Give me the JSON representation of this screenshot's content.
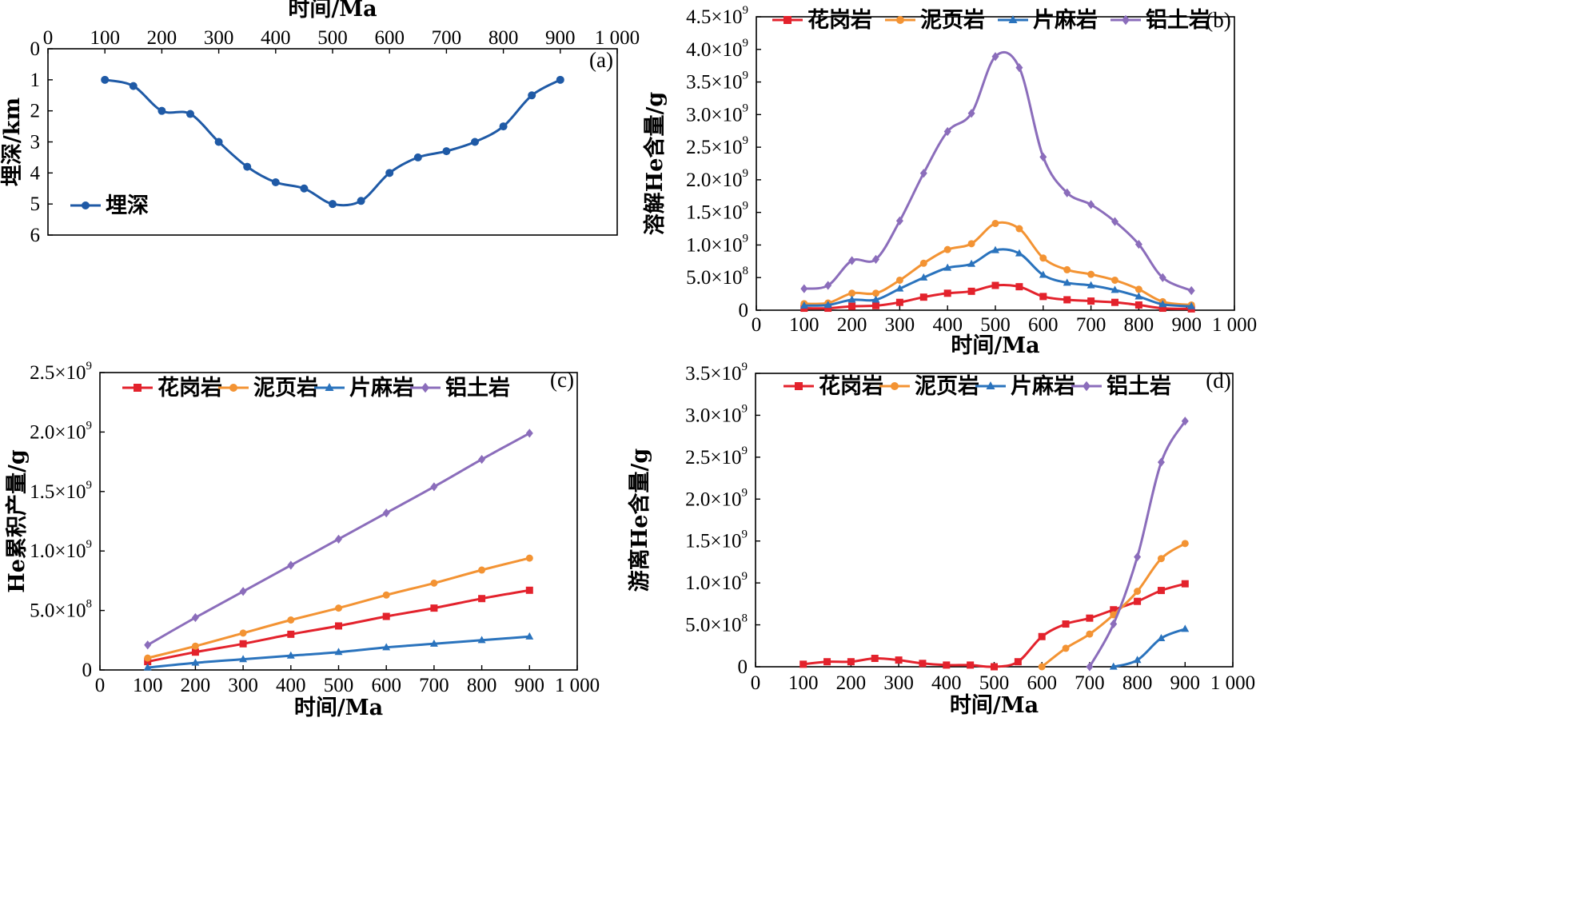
{
  "colors": {
    "granite": "#e3222c",
    "shale": "#f39333",
    "gneiss": "#2a73bd",
    "bauxite": "#8b6dbb",
    "depth": "#1f5aa6"
  },
  "chart_data": [
    {
      "id": "a",
      "type": "line",
      "panel_label": "(a)",
      "xlabel": "时间/Ma",
      "ylabel": "埋深/km",
      "x_axis_position": "top",
      "y_inverted": true,
      "xlim": [
        0,
        1000
      ],
      "ylim": [
        0,
        6
      ],
      "x_ticks": [
        "0",
        "100",
        "200",
        "300",
        "400",
        "500",
        "600",
        "700",
        "800",
        "900",
        "1 000"
      ],
      "y_ticks": [
        "0",
        "1",
        "2",
        "3",
        "4",
        "5",
        "6"
      ],
      "legend": {
        "placement": "bottom-left",
        "entries": [
          "埋深"
        ]
      },
      "series": [
        {
          "name": "埋深",
          "color": "#1f5aa6",
          "marker": "circle",
          "x": [
            100,
            150,
            200,
            250,
            300,
            350,
            400,
            450,
            500,
            550,
            600,
            650,
            700,
            750,
            800,
            850,
            900
          ],
          "y": [
            1.0,
            1.2,
            2.0,
            2.1,
            3.0,
            3.8,
            4.3,
            4.5,
            5.0,
            4.9,
            4.0,
            3.5,
            3.3,
            3.0,
            2.5,
            1.5,
            1.0
          ]
        }
      ]
    },
    {
      "id": "b",
      "type": "line",
      "panel_label": "(b)",
      "xlabel": "时间/Ma",
      "ylabel": "溶解He含量/g",
      "xlim": [
        0,
        1000
      ],
      "ylim": [
        0,
        4500000000
      ],
      "x_ticks": [
        "0",
        "100",
        "200",
        "300",
        "400",
        "500",
        "600",
        "700",
        "800",
        "900",
        "1 000"
      ],
      "y_ticks": [
        {
          "value": 0,
          "mant": "0",
          "exp": ""
        },
        {
          "value": 500000000,
          "mant": "5.0×10",
          "exp": "8"
        },
        {
          "value": 1000000000,
          "mant": "1.0×10",
          "exp": "9"
        },
        {
          "value": 1500000000,
          "mant": "1.5×10",
          "exp": "9"
        },
        {
          "value": 2000000000,
          "mant": "2.0×10",
          "exp": "9"
        },
        {
          "value": 2500000000,
          "mant": "2.5×10",
          "exp": "9"
        },
        {
          "value": 3000000000,
          "mant": "3.0×10",
          "exp": "9"
        },
        {
          "value": 3500000000,
          "mant": "3.5×10",
          "exp": "9"
        },
        {
          "value": 4000000000,
          "mant": "4.0×10",
          "exp": "9"
        },
        {
          "value": 4500000000,
          "mant": "4.5×10",
          "exp": "9"
        }
      ],
      "legend": {
        "placement": "top",
        "entries": [
          "花岗岩",
          "泥页岩",
          "片麻岩",
          "铝土岩"
        ]
      },
      "series": [
        {
          "name": "花岗岩",
          "color": "#e3222c",
          "marker": "square",
          "x": [
            100,
            150,
            200,
            250,
            300,
            350,
            400,
            450,
            500,
            550,
            600,
            650,
            700,
            750,
            800,
            850,
            910
          ],
          "y": [
            30000000,
            30000000,
            60000000,
            70000000,
            120000000,
            200000000,
            260000000,
            290000000,
            380000000,
            360000000,
            210000000,
            160000000,
            140000000,
            120000000,
            80000000,
            30000000,
            20000000
          ]
        },
        {
          "name": "泥页岩",
          "color": "#f39333",
          "marker": "circle",
          "x": [
            100,
            150,
            200,
            250,
            300,
            350,
            400,
            450,
            500,
            550,
            600,
            650,
            700,
            750,
            800,
            850,
            910
          ],
          "y": [
            100000000,
            110000000,
            260000000,
            260000000,
            460000000,
            720000000,
            930000000,
            1020000000,
            1330000000,
            1250000000,
            800000000,
            620000000,
            550000000,
            460000000,
            320000000,
            130000000,
            80000000
          ]
        },
        {
          "name": "片麻岩",
          "color": "#2a73bd",
          "marker": "triangle",
          "x": [
            100,
            150,
            200,
            250,
            300,
            350,
            400,
            450,
            500,
            550,
            600,
            650,
            700,
            750,
            800,
            850,
            910
          ],
          "y": [
            70000000,
            80000000,
            160000000,
            160000000,
            330000000,
            500000000,
            650000000,
            710000000,
            920000000,
            870000000,
            540000000,
            420000000,
            380000000,
            310000000,
            210000000,
            90000000,
            60000000
          ]
        },
        {
          "name": "铝土岩",
          "color": "#8b6dbb",
          "marker": "diamond",
          "x": [
            100,
            150,
            200,
            250,
            300,
            350,
            400,
            450,
            500,
            550,
            600,
            650,
            700,
            750,
            800,
            850,
            910
          ],
          "y": [
            330000000,
            380000000,
            760000000,
            780000000,
            1370000000,
            2100000000,
            2740000000,
            3020000000,
            3890000000,
            3720000000,
            2350000000,
            1800000000,
            1620000000,
            1360000000,
            1010000000,
            500000000,
            300000000
          ]
        }
      ]
    },
    {
      "id": "c",
      "type": "line",
      "panel_label": "(c)",
      "xlabel": "时间/Ma",
      "ylabel": "He累积产量/g",
      "xlim": [
        0,
        1000
      ],
      "ylim": [
        0,
        2500000000
      ],
      "x_ticks": [
        "0",
        "100",
        "200",
        "300",
        "400",
        "500",
        "600",
        "700",
        "800",
        "900",
        "1 000"
      ],
      "y_ticks": [
        {
          "value": 0,
          "mant": "0",
          "exp": ""
        },
        {
          "value": 500000000,
          "mant": "5.0×10",
          "exp": "8"
        },
        {
          "value": 1000000000,
          "mant": "1.0×10",
          "exp": "9"
        },
        {
          "value": 1500000000,
          "mant": "1.5×10",
          "exp": "9"
        },
        {
          "value": 2000000000,
          "mant": "2.0×10",
          "exp": "9"
        },
        {
          "value": 2500000000,
          "mant": "2.5×10",
          "exp": "9"
        }
      ],
      "legend": {
        "placement": "top",
        "entries": [
          "花岗岩",
          "泥页岩",
          "片麻岩",
          "铝土岩"
        ]
      },
      "series": [
        {
          "name": "花岗岩",
          "color": "#e3222c",
          "marker": "square",
          "x": [
            100,
            200,
            300,
            400,
            500,
            600,
            700,
            800,
            900
          ],
          "y": [
            70000000,
            150000000,
            220000000,
            300000000,
            370000000,
            450000000,
            520000000,
            600000000,
            670000000
          ]
        },
        {
          "name": "泥页岩",
          "color": "#f39333",
          "marker": "circle",
          "x": [
            100,
            200,
            300,
            400,
            500,
            600,
            700,
            800,
            900
          ],
          "y": [
            100000000,
            200000000,
            310000000,
            420000000,
            520000000,
            630000000,
            730000000,
            840000000,
            940000000
          ]
        },
        {
          "name": "片麻岩",
          "color": "#2a73bd",
          "marker": "triangle",
          "x": [
            100,
            200,
            300,
            400,
            500,
            600,
            700,
            800,
            900
          ],
          "y": [
            20000000,
            60000000,
            90000000,
            120000000,
            150000000,
            190000000,
            220000000,
            250000000,
            280000000
          ]
        },
        {
          "name": "铝土岩",
          "color": "#8b6dbb",
          "marker": "diamond",
          "x": [
            100,
            200,
            300,
            400,
            500,
            600,
            700,
            800,
            900
          ],
          "y": [
            210000000,
            440000000,
            660000000,
            880000000,
            1100000000,
            1320000000,
            1540000000,
            1770000000,
            1990000000
          ]
        }
      ]
    },
    {
      "id": "d",
      "type": "line",
      "panel_label": "(d)",
      "xlabel": "时间/Ma",
      "ylabel": "游离He含量/g",
      "xlim": [
        0,
        1000
      ],
      "ylim": [
        0,
        3500000000
      ],
      "x_ticks": [
        "0",
        "100",
        "200",
        "300",
        "400",
        "500",
        "600",
        "700",
        "800",
        "900",
        "1 000"
      ],
      "y_ticks": [
        {
          "value": 0,
          "mant": "0",
          "exp": ""
        },
        {
          "value": 500000000,
          "mant": "5.0×10",
          "exp": "8"
        },
        {
          "value": 1000000000,
          "mant": "1.0×10",
          "exp": "9"
        },
        {
          "value": 1500000000,
          "mant": "1.5×10",
          "exp": "9"
        },
        {
          "value": 2000000000,
          "mant": "2.0×10",
          "exp": "9"
        },
        {
          "value": 2500000000,
          "mant": "2.5×10",
          "exp": "9"
        },
        {
          "value": 3000000000,
          "mant": "3.0×10",
          "exp": "9"
        },
        {
          "value": 3500000000,
          "mant": "3.5×10",
          "exp": "9"
        }
      ],
      "legend": {
        "placement": "top",
        "entries": [
          "花岗岩",
          "泥页岩",
          "片麻岩",
          "铝土岩"
        ]
      },
      "series": [
        {
          "name": "花岗岩",
          "color": "#e3222c",
          "marker": "square",
          "x": [
            100,
            150,
            200,
            250,
            300,
            350,
            400,
            450,
            500,
            550,
            600,
            650,
            700,
            750,
            800,
            850,
            900
          ],
          "y": [
            30000000,
            60000000,
            60000000,
            100000000,
            80000000,
            40000000,
            20000000,
            20000000,
            0,
            60000000,
            360000000,
            510000000,
            580000000,
            680000000,
            780000000,
            910000000,
            990000000
          ]
        },
        {
          "name": "泥页岩",
          "color": "#f39333",
          "marker": "circle",
          "x": [
            600,
            650,
            700,
            750,
            800,
            850,
            900
          ],
          "y": [
            0,
            220000000,
            390000000,
            620000000,
            900000000,
            1290000000,
            1470000000
          ]
        },
        {
          "name": "片麻岩",
          "color": "#2a73bd",
          "marker": "triangle",
          "x": [
            750,
            800,
            850,
            900
          ],
          "y": [
            0,
            80000000,
            340000000,
            450000000
          ]
        },
        {
          "name": "铝土岩",
          "color": "#8b6dbb",
          "marker": "diamond",
          "x": [
            700,
            750,
            800,
            850,
            900
          ],
          "y": [
            0,
            510000000,
            1310000000,
            2440000000,
            2930000000
          ]
        }
      ]
    }
  ]
}
